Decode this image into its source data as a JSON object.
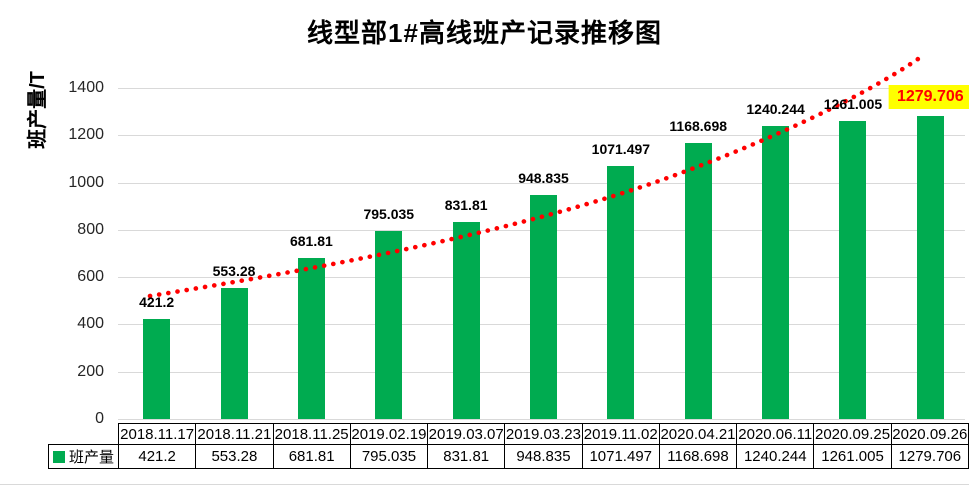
{
  "chart_data": {
    "type": "bar",
    "title": "线型部1#高线班产记录推移图",
    "ylabel": "班产量/T",
    "series_name": "班产量",
    "categories": [
      "2018.11.17",
      "2018.11.21",
      "2018.11.25",
      "2019.02.19",
      "2019.03.07",
      "2019.03.23",
      "2019.11.02",
      "2020.04.21",
      "2020.06.11",
      "2020.09.25",
      "2020.09.26"
    ],
    "values": [
      421.2,
      553.28,
      681.81,
      795.035,
      831.81,
      948.835,
      1071.497,
      1168.698,
      1240.244,
      1261.005,
      1279.706
    ],
    "value_labels": [
      "421.2",
      "553.28",
      "681.81",
      "795.035",
      "831.81",
      "948.835",
      "1071.497",
      "1168.698",
      "1240.244",
      "1261.005",
      "1279.706"
    ],
    "ylim": [
      0,
      1400
    ],
    "yticks": [
      0,
      200,
      400,
      600,
      800,
      1000,
      1200,
      1400
    ],
    "grid": "horizontal",
    "legend_position": "data-table-left",
    "trendline": {
      "style": "dotted",
      "shape": "smooth-increasing",
      "color": "#FF0000"
    },
    "highlight_last": {
      "background": "#FFFF00",
      "text_color": "#FF0000"
    },
    "colors": {
      "bar": "#00AB50",
      "gridline": "#D9D9D9",
      "axis_text": "#262626",
      "table_border": "#000000"
    }
  }
}
